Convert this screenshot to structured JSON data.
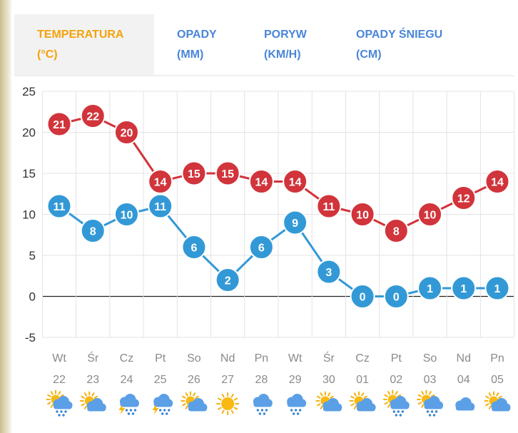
{
  "tabs": [
    {
      "line1": "TEMPERATURA",
      "line2": "(°C)",
      "active": true
    },
    {
      "line1": "OPADY",
      "line2": "(MM)",
      "active": false
    },
    {
      "line1": "PORYW",
      "line2": "(KM/H)",
      "active": false
    },
    {
      "line1": "OPADY ŚNIEGU",
      "line2": "(CM)",
      "active": false
    }
  ],
  "colors": {
    "max_series": "#d1343b",
    "min_series": "#3399d6",
    "active_tab": "#f5a20a",
    "tab": "#4a86d9",
    "grid": "#e3e3e3",
    "axis_text": "#333333",
    "day_text": "#8a8a8a"
  },
  "chart_data": {
    "type": "line",
    "title": "",
    "xlabel": "",
    "ylabel": "",
    "ylim": [
      -5,
      25
    ],
    "yticks": [
      25,
      20,
      15,
      10,
      5,
      0,
      -5
    ],
    "grid": true,
    "days": [
      "Wt",
      "Śr",
      "Cz",
      "Pt",
      "So",
      "Nd",
      "Pn",
      "Wt",
      "Śr",
      "Cz",
      "Pt",
      "So",
      "Nd",
      "Pn"
    ],
    "dates": [
      "22",
      "23",
      "24",
      "25",
      "26",
      "27",
      "28",
      "29",
      "30",
      "01",
      "02",
      "03",
      "04",
      "05"
    ],
    "weather_icons": [
      "partly-sunny-rain-icon",
      "partly-sunny-icon",
      "storm-rain-icon",
      "storm-rain-icon",
      "partly-sunny-icon",
      "sun-icon",
      "cloud-rain-icon",
      "cloud-rain-icon",
      "partly-sunny-icon",
      "partly-sunny-icon",
      "partly-sunny-rain-icon",
      "partly-sunny-rain-icon",
      "cloud-icon",
      "partly-sunny-icon"
    ],
    "series": [
      {
        "values": [
          21,
          22,
          20,
          14,
          15,
          15,
          14,
          14,
          11,
          10,
          8,
          10,
          12,
          14
        ]
      },
      {
        "values": [
          11,
          8,
          10,
          11,
          6,
          2,
          6,
          9,
          3,
          0,
          0,
          1,
          1,
          1
        ]
      }
    ]
  }
}
